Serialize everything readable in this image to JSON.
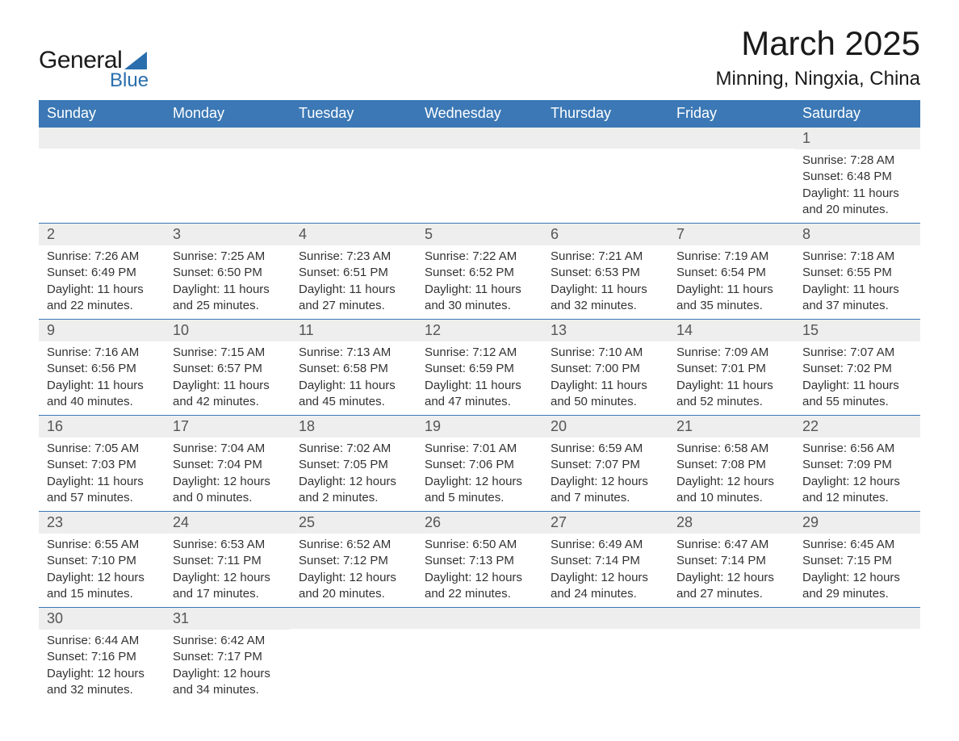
{
  "logo": {
    "general": "General",
    "blue": "Blue",
    "shape_color": "#2a6ead"
  },
  "title": "March 2025",
  "location": "Minning, Ningxia, China",
  "day_headers": [
    "Sunday",
    "Monday",
    "Tuesday",
    "Wednesday",
    "Thursday",
    "Friday",
    "Saturday"
  ],
  "colors": {
    "header_bg": "#3b78b5",
    "header_text": "#ffffff",
    "row_divider": "#3b78b5",
    "daynum_bg": "#eeeeee",
    "body_text": "#333333"
  },
  "weeks": [
    [
      {
        "empty": true
      },
      {
        "empty": true
      },
      {
        "empty": true
      },
      {
        "empty": true
      },
      {
        "empty": true
      },
      {
        "empty": true
      },
      {
        "num": "1",
        "sunrise": "Sunrise: 7:28 AM",
        "sunset": "Sunset: 6:48 PM",
        "daylight1": "Daylight: 11 hours",
        "daylight2": "and 20 minutes."
      }
    ],
    [
      {
        "num": "2",
        "sunrise": "Sunrise: 7:26 AM",
        "sunset": "Sunset: 6:49 PM",
        "daylight1": "Daylight: 11 hours",
        "daylight2": "and 22 minutes."
      },
      {
        "num": "3",
        "sunrise": "Sunrise: 7:25 AM",
        "sunset": "Sunset: 6:50 PM",
        "daylight1": "Daylight: 11 hours",
        "daylight2": "and 25 minutes."
      },
      {
        "num": "4",
        "sunrise": "Sunrise: 7:23 AM",
        "sunset": "Sunset: 6:51 PM",
        "daylight1": "Daylight: 11 hours",
        "daylight2": "and 27 minutes."
      },
      {
        "num": "5",
        "sunrise": "Sunrise: 7:22 AM",
        "sunset": "Sunset: 6:52 PM",
        "daylight1": "Daylight: 11 hours",
        "daylight2": "and 30 minutes."
      },
      {
        "num": "6",
        "sunrise": "Sunrise: 7:21 AM",
        "sunset": "Sunset: 6:53 PM",
        "daylight1": "Daylight: 11 hours",
        "daylight2": "and 32 minutes."
      },
      {
        "num": "7",
        "sunrise": "Sunrise: 7:19 AM",
        "sunset": "Sunset: 6:54 PM",
        "daylight1": "Daylight: 11 hours",
        "daylight2": "and 35 minutes."
      },
      {
        "num": "8",
        "sunrise": "Sunrise: 7:18 AM",
        "sunset": "Sunset: 6:55 PM",
        "daylight1": "Daylight: 11 hours",
        "daylight2": "and 37 minutes."
      }
    ],
    [
      {
        "num": "9",
        "sunrise": "Sunrise: 7:16 AM",
        "sunset": "Sunset: 6:56 PM",
        "daylight1": "Daylight: 11 hours",
        "daylight2": "and 40 minutes."
      },
      {
        "num": "10",
        "sunrise": "Sunrise: 7:15 AM",
        "sunset": "Sunset: 6:57 PM",
        "daylight1": "Daylight: 11 hours",
        "daylight2": "and 42 minutes."
      },
      {
        "num": "11",
        "sunrise": "Sunrise: 7:13 AM",
        "sunset": "Sunset: 6:58 PM",
        "daylight1": "Daylight: 11 hours",
        "daylight2": "and 45 minutes."
      },
      {
        "num": "12",
        "sunrise": "Sunrise: 7:12 AM",
        "sunset": "Sunset: 6:59 PM",
        "daylight1": "Daylight: 11 hours",
        "daylight2": "and 47 minutes."
      },
      {
        "num": "13",
        "sunrise": "Sunrise: 7:10 AM",
        "sunset": "Sunset: 7:00 PM",
        "daylight1": "Daylight: 11 hours",
        "daylight2": "and 50 minutes."
      },
      {
        "num": "14",
        "sunrise": "Sunrise: 7:09 AM",
        "sunset": "Sunset: 7:01 PM",
        "daylight1": "Daylight: 11 hours",
        "daylight2": "and 52 minutes."
      },
      {
        "num": "15",
        "sunrise": "Sunrise: 7:07 AM",
        "sunset": "Sunset: 7:02 PM",
        "daylight1": "Daylight: 11 hours",
        "daylight2": "and 55 minutes."
      }
    ],
    [
      {
        "num": "16",
        "sunrise": "Sunrise: 7:05 AM",
        "sunset": "Sunset: 7:03 PM",
        "daylight1": "Daylight: 11 hours",
        "daylight2": "and 57 minutes."
      },
      {
        "num": "17",
        "sunrise": "Sunrise: 7:04 AM",
        "sunset": "Sunset: 7:04 PM",
        "daylight1": "Daylight: 12 hours",
        "daylight2": "and 0 minutes."
      },
      {
        "num": "18",
        "sunrise": "Sunrise: 7:02 AM",
        "sunset": "Sunset: 7:05 PM",
        "daylight1": "Daylight: 12 hours",
        "daylight2": "and 2 minutes."
      },
      {
        "num": "19",
        "sunrise": "Sunrise: 7:01 AM",
        "sunset": "Sunset: 7:06 PM",
        "daylight1": "Daylight: 12 hours",
        "daylight2": "and 5 minutes."
      },
      {
        "num": "20",
        "sunrise": "Sunrise: 6:59 AM",
        "sunset": "Sunset: 7:07 PM",
        "daylight1": "Daylight: 12 hours",
        "daylight2": "and 7 minutes."
      },
      {
        "num": "21",
        "sunrise": "Sunrise: 6:58 AM",
        "sunset": "Sunset: 7:08 PM",
        "daylight1": "Daylight: 12 hours",
        "daylight2": "and 10 minutes."
      },
      {
        "num": "22",
        "sunrise": "Sunrise: 6:56 AM",
        "sunset": "Sunset: 7:09 PM",
        "daylight1": "Daylight: 12 hours",
        "daylight2": "and 12 minutes."
      }
    ],
    [
      {
        "num": "23",
        "sunrise": "Sunrise: 6:55 AM",
        "sunset": "Sunset: 7:10 PM",
        "daylight1": "Daylight: 12 hours",
        "daylight2": "and 15 minutes."
      },
      {
        "num": "24",
        "sunrise": "Sunrise: 6:53 AM",
        "sunset": "Sunset: 7:11 PM",
        "daylight1": "Daylight: 12 hours",
        "daylight2": "and 17 minutes."
      },
      {
        "num": "25",
        "sunrise": "Sunrise: 6:52 AM",
        "sunset": "Sunset: 7:12 PM",
        "daylight1": "Daylight: 12 hours",
        "daylight2": "and 20 minutes."
      },
      {
        "num": "26",
        "sunrise": "Sunrise: 6:50 AM",
        "sunset": "Sunset: 7:13 PM",
        "daylight1": "Daylight: 12 hours",
        "daylight2": "and 22 minutes."
      },
      {
        "num": "27",
        "sunrise": "Sunrise: 6:49 AM",
        "sunset": "Sunset: 7:14 PM",
        "daylight1": "Daylight: 12 hours",
        "daylight2": "and 24 minutes."
      },
      {
        "num": "28",
        "sunrise": "Sunrise: 6:47 AM",
        "sunset": "Sunset: 7:14 PM",
        "daylight1": "Daylight: 12 hours",
        "daylight2": "and 27 minutes."
      },
      {
        "num": "29",
        "sunrise": "Sunrise: 6:45 AM",
        "sunset": "Sunset: 7:15 PM",
        "daylight1": "Daylight: 12 hours",
        "daylight2": "and 29 minutes."
      }
    ],
    [
      {
        "num": "30",
        "sunrise": "Sunrise: 6:44 AM",
        "sunset": "Sunset: 7:16 PM",
        "daylight1": "Daylight: 12 hours",
        "daylight2": "and 32 minutes."
      },
      {
        "num": "31",
        "sunrise": "Sunrise: 6:42 AM",
        "sunset": "Sunset: 7:17 PM",
        "daylight1": "Daylight: 12 hours",
        "daylight2": "and 34 minutes."
      },
      {
        "empty": true
      },
      {
        "empty": true
      },
      {
        "empty": true
      },
      {
        "empty": true
      },
      {
        "empty": true
      }
    ]
  ]
}
